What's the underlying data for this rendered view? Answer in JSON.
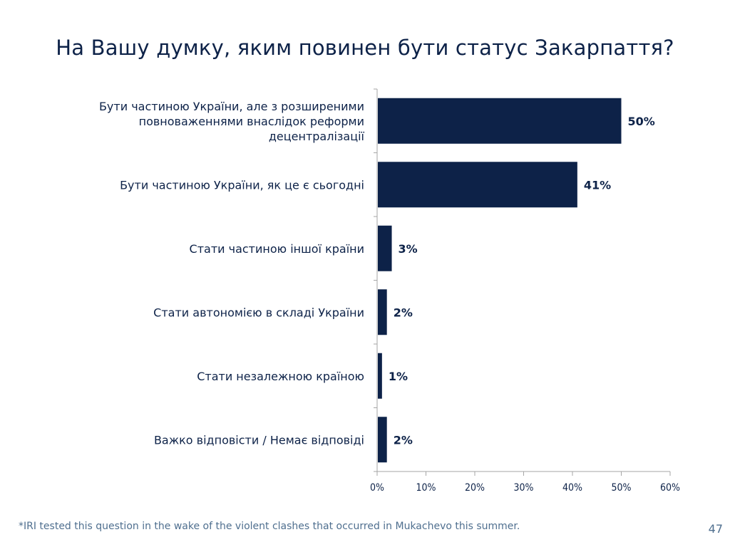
{
  "slide": {
    "title": "На Вашу думку, яким повинен бути статус Закарпаття?",
    "footnote": "*IRI tested this question in the wake of the violent clashes that occurred in Mukachevo this summer.",
    "page_number": "47"
  },
  "chart_data": {
    "type": "bar",
    "orientation": "horizontal",
    "categories": [
      [
        "Бути частиною України, але з розширеними",
        "повноваженнями внаслідок реформи",
        "децентралізації"
      ],
      [
        "Бути частиною України, як це є сьогодні"
      ],
      [
        "Стати частиною іншої країни"
      ],
      [
        "Стати автономією в складі України"
      ],
      [
        "Стати незалежною країною"
      ],
      [
        "Важко відповісти / Немає відповіді"
      ]
    ],
    "values": [
      50,
      41,
      3,
      2,
      1,
      2
    ],
    "data_labels": [
      "50%",
      "41%",
      "3%",
      "2%",
      "1%",
      "2%"
    ],
    "xlim": [
      0,
      60
    ],
    "x_ticks": [
      0,
      10,
      20,
      30,
      40,
      50,
      60
    ],
    "x_tick_labels": [
      "0%",
      "10%",
      "20%",
      "30%",
      "40%",
      "50%",
      "60%"
    ],
    "grid": false,
    "bar_color": "#0d2248",
    "axis_color": "#a6a6a6",
    "label_color": "#0d2248"
  }
}
